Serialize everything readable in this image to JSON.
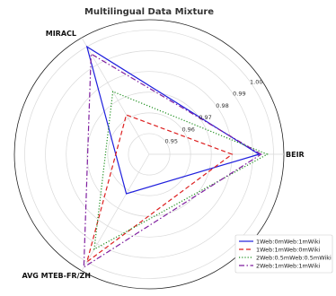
{
  "chart_data": {
    "type": "radar",
    "title": "Multilingual Data Mixture",
    "axes": [
      "BEIR",
      "MIRACL",
      "AVG MTEB-FR/ZH"
    ],
    "radial_ticks": [
      0.95,
      0.96,
      0.97,
      0.98,
      0.99,
      1.0
    ],
    "tick_labels": [
      "0.95",
      "0.96",
      "0.97",
      "0.98",
      "0.99",
      "1.00"
    ],
    "radial_range": [
      0.94,
      1.005
    ],
    "grid": true,
    "legend_position": "bottom-right",
    "series": [
      {
        "name": "1Web:0mWeb:1mWiki",
        "values": [
          0.993,
          1.0,
          0.962
        ],
        "color": "#1f1fdd",
        "line_style": "solid"
      },
      {
        "name": "1Web:1mWeb:0mWiki",
        "values": [
          0.98,
          0.962,
          1.0
        ],
        "color": "#dd1f1f",
        "line_style": "dashed"
      },
      {
        "name": "2Web:0.5mWeb:0.5mWiki",
        "values": [
          0.997,
          0.975,
          0.993
        ],
        "color": "#1f8f1f",
        "line_style": "dotted"
      },
      {
        "name": "2Web:1mWeb:1mWiki",
        "values": [
          0.994,
          0.996,
          1.003
        ],
        "color": "#7f1f9f",
        "line_style": "dashdot"
      }
    ]
  }
}
